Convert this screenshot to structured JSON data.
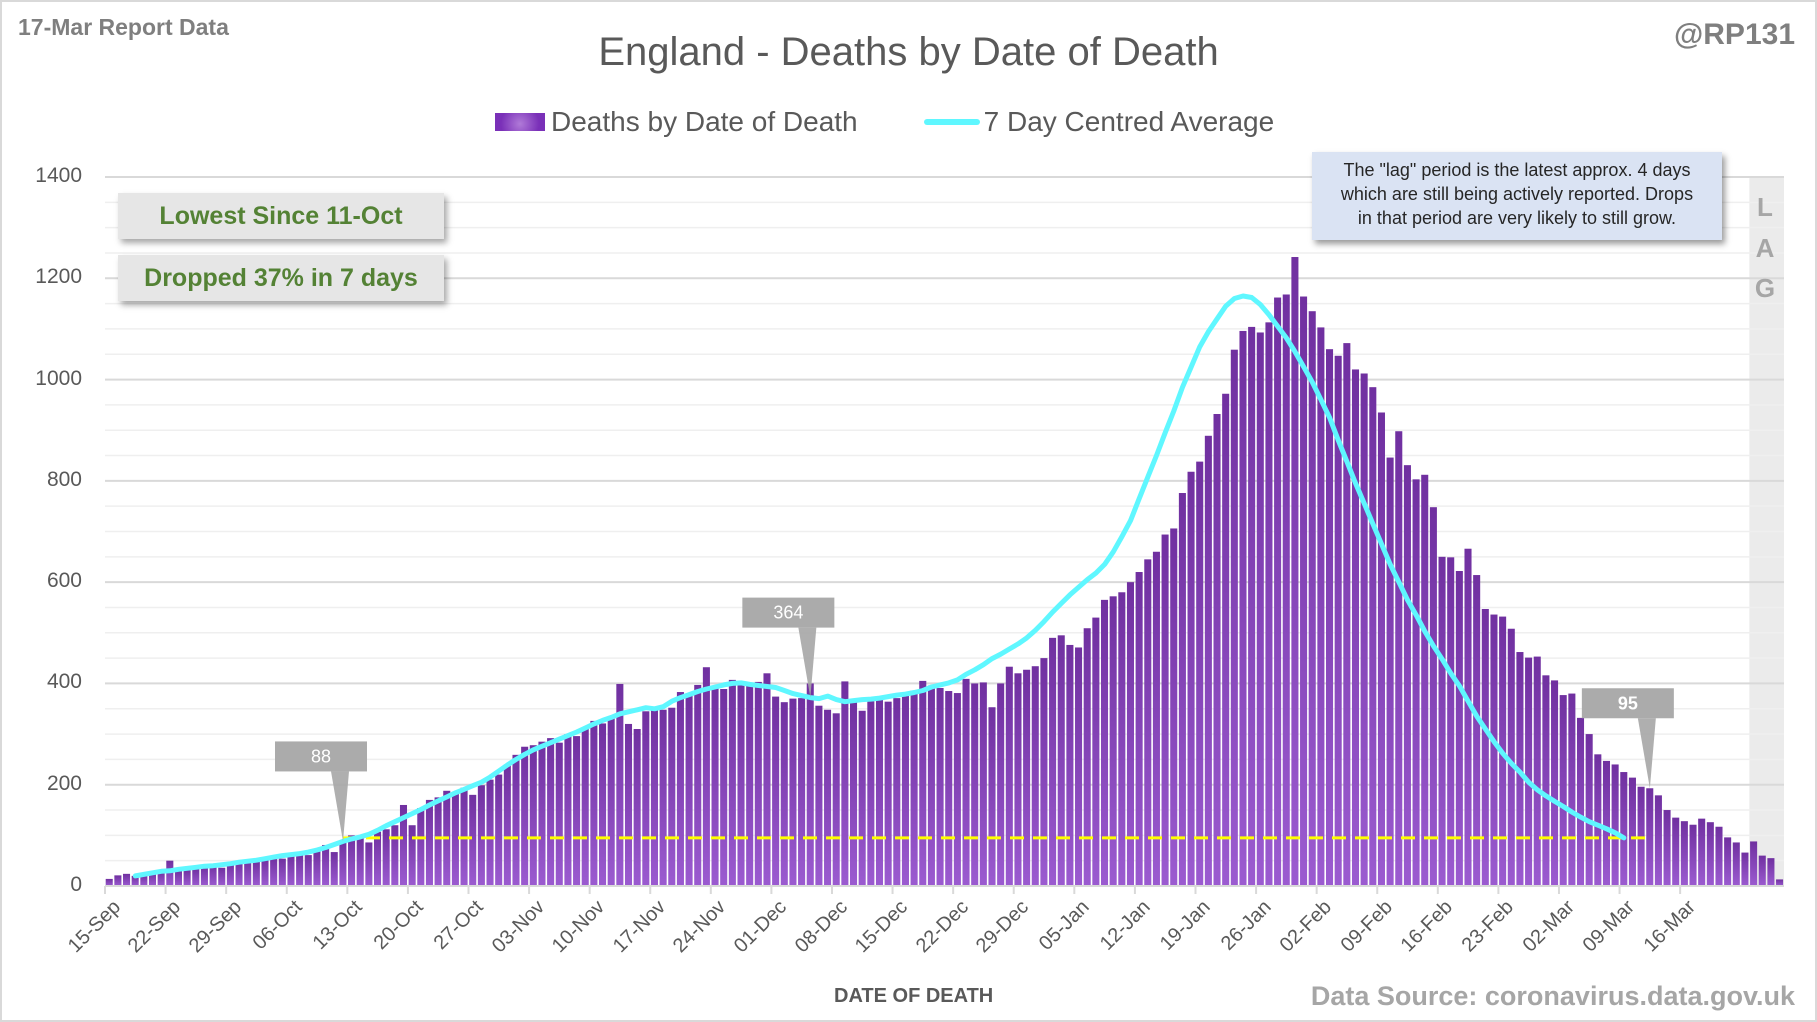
{
  "header": {
    "report_label": "17-Mar Report Data",
    "handle": "@RP131",
    "source": "Data Source: coronavirus.data.gov.uk"
  },
  "annotations": {
    "lowest_since": "Lowest Since 11-Oct",
    "dropped": "Dropped 37% in 7 days",
    "lag_note_lines": [
      "The \"lag\" period is the latest approx. 4 days",
      "which are still being actively reported.  Drops",
      "in that period are very likely to still grow."
    ],
    "lag_letters": [
      "L",
      "A",
      "G"
    ],
    "callouts": [
      {
        "label": "88",
        "day_index": 27
      },
      {
        "label": "364",
        "day_index": 81
      },
      {
        "label": "95",
        "day_index": 178
      }
    ],
    "reference_line_value": 95
  },
  "colors": {
    "bar": "#7030a0",
    "bar_light": "#9b5bd0",
    "average_line": "#5ff7ff",
    "reference_line": "#ffff00",
    "annotation_text": "#548235",
    "lag_fill": "#ebebeb"
  },
  "chart_data": {
    "type": "bar",
    "title": "England - Deaths by Date of Death",
    "xlabel": "DATE OF DEATH",
    "ylabel": "",
    "ylim": [
      0,
      1400
    ],
    "yticks": [
      0,
      200,
      400,
      600,
      800,
      1000,
      1200,
      1400
    ],
    "grid": true,
    "legend_position": "top-center",
    "start_date": "15-Sep",
    "x_tick_labels": [
      "15-Sep",
      "22-Sep",
      "29-Sep",
      "06-Oct",
      "13-Oct",
      "20-Oct",
      "27-Oct",
      "03-Nov",
      "10-Nov",
      "17-Nov",
      "24-Nov",
      "01-Dec",
      "08-Dec",
      "15-Dec",
      "22-Dec",
      "29-Dec",
      "05-Jan",
      "12-Jan",
      "19-Jan",
      "26-Jan",
      "02-Feb",
      "09-Feb",
      "16-Feb",
      "23-Feb",
      "02-Mar",
      "09-Mar",
      "16-Mar"
    ],
    "lag_days": 4,
    "series": [
      {
        "name": "Deaths by Date of Death",
        "type": "bar",
        "values": [
          14,
          21,
          24,
          20,
          22,
          27,
          29,
          50,
          30,
          32,
          35,
          38,
          42,
          36,
          45,
          49,
          52,
          48,
          53,
          56,
          54,
          60,
          63,
          61,
          68,
          81,
          67,
          88,
          100,
          94,
          86,
          107,
          112,
          120,
          160,
          120,
          154,
          170,
          175,
          188,
          185,
          194,
          180,
          199,
          210,
          220,
          240,
          259,
          275,
          278,
          285,
          292,
          283,
          300,
          296,
          311,
          326,
          321,
          332,
          399,
          320,
          310,
          345,
          353,
          348,
          352,
          383,
          378,
          397,
          432,
          392,
          389,
          407,
          396,
          400,
          403,
          420,
          374,
          363,
          370,
          371,
          400,
          356,
          348,
          341,
          404,
          364,
          346,
          365,
          369,
          364,
          371,
          376,
          386,
          405,
          396,
          391,
          385,
          381,
          409,
          400,
          402,
          353,
          400,
          433,
          420,
          427,
          434,
          450,
          490,
          495,
          476,
          471,
          509,
          530,
          565,
          572,
          580,
          600,
          620,
          645,
          660,
          694,
          706,
          776,
          818,
          838,
          889,
          932,
          972,
          1059,
          1096,
          1104,
          1093,
          1113,
          1162,
          1168,
          1242,
          1164,
          1135,
          1103,
          1060,
          1047,
          1072,
          1020,
          1012,
          985,
          935,
          846,
          898,
          831,
          803,
          812,
          748,
          650,
          649,
          622,
          666,
          614,
          547,
          536,
          532,
          508,
          462,
          451,
          453,
          416,
          406,
          377,
          380,
          332,
          300,
          260,
          247,
          240,
          225,
          214,
          196,
          193,
          179,
          150,
          135,
          128,
          121,
          133,
          126,
          117,
          96,
          86,
          66,
          88,
          60,
          55,
          13
        ]
      },
      {
        "name": "7 Day Centred Average",
        "type": "line",
        "values": [
          null,
          null,
          null,
          20,
          23,
          26,
          29,
          30,
          33,
          35,
          37,
          39,
          40,
          42,
          44,
          47,
          49,
          51,
          54,
          57,
          60,
          62,
          64,
          67,
          71,
          76,
          82,
          88,
          93,
          97,
          102,
          110,
          119,
          127,
          135,
          143,
          151,
          160,
          168,
          176,
          184,
          191,
          198,
          205,
          215,
          227,
          239,
          250,
          260,
          269,
          276,
          283,
          290,
          297,
          304,
          312,
          320,
          327,
          333,
          340,
          344,
          348,
          352,
          350,
          354,
          365,
          372,
          378,
          384,
          389,
          393,
          397,
          400,
          401,
          398,
          396,
          394,
          392,
          386,
          380,
          376,
          372,
          370,
          375,
          368,
          364,
          366,
          368,
          369,
          371,
          374,
          377,
          379,
          382,
          386,
          393,
          397,
          401,
          407,
          418,
          427,
          437,
          449,
          458,
          468,
          478,
          490,
          505,
          522,
          541,
          558,
          575,
          590,
          605,
          618,
          635,
          660,
          690,
          722,
          765,
          808,
          850,
          895,
          938,
          985,
          1025,
          1065,
          1095,
          1120,
          1145,
          1160,
          1165,
          1162,
          1148,
          1128,
          1105,
          1082,
          1055,
          1025,
          995,
          960,
          925,
          880,
          838,
          795,
          755,
          715,
          675,
          635,
          600,
          565,
          535,
          503,
          474,
          448,
          420,
          395,
          365,
          335,
          310,
          285,
          262,
          242,
          225,
          205,
          190,
          178,
          167,
          157,
          146,
          136,
          127,
          120,
          113,
          105,
          95,
          null,
          null,
          null
        ]
      }
    ]
  }
}
